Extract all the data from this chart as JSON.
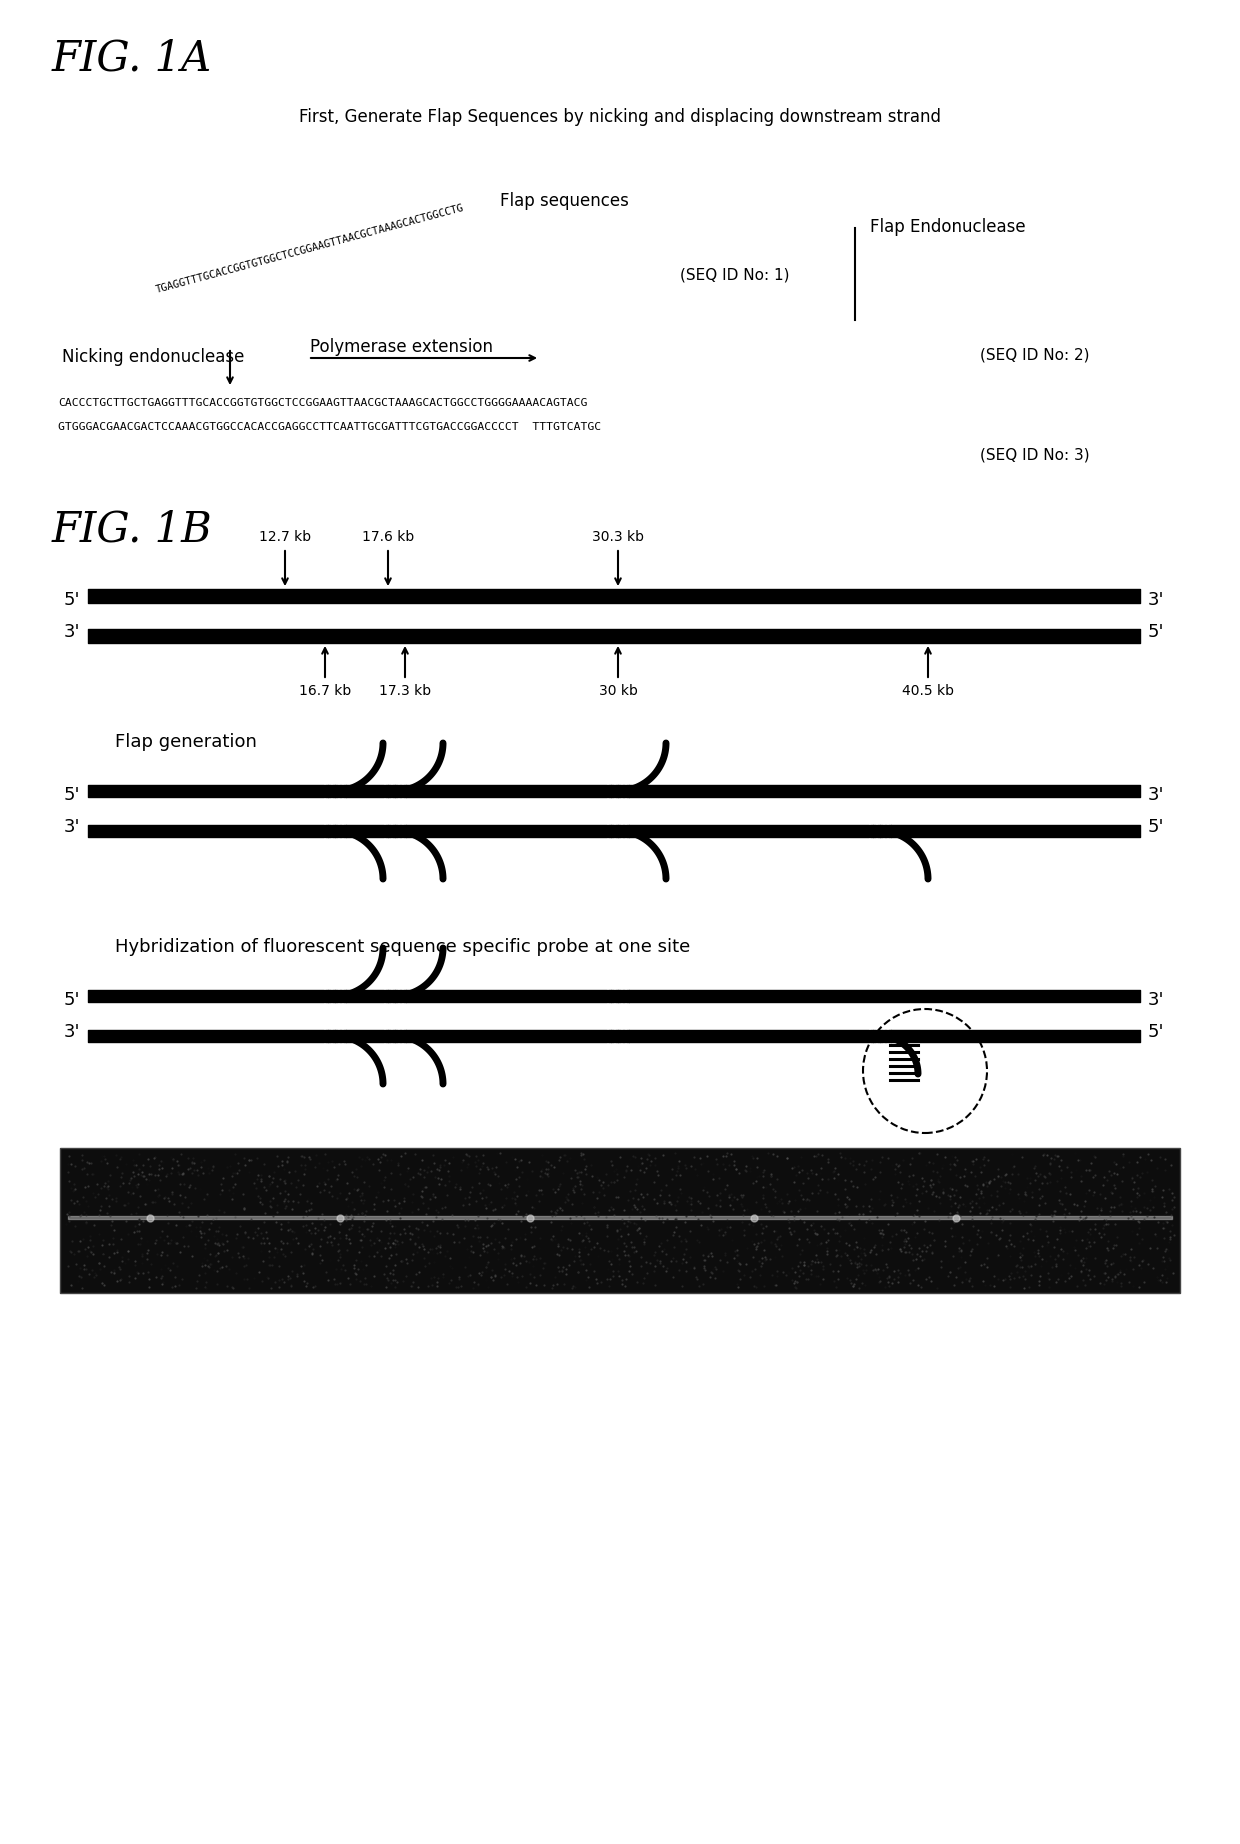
{
  "fig1a_title": "FIG. 1A",
  "fig1b_title": "FIG. 1B",
  "fig1a_subtitle": "First, Generate Flap Sequences by nicking and displacing downstream strand",
  "flap_sequence_text": "TGAGGTTTGCACCGGTGTGGCTCCGGAAGTTAACGCTAAAGCACTGGCCTG",
  "flap_label": "Flap sequences",
  "flap_endonuclease": "Flap Endonuclease",
  "nicking_endonuclease": "Nicking endonuclease",
  "polymerase_extension": "Polymerase extension",
  "seq1": "(SEQ ID No: 1)",
  "seq2": "(SEQ ID No: 2)",
  "seq3": "(SEQ ID No: 3)",
  "dna_line1": "CACCCTGCTTGCTGAGGTTTGCACCGGTGTGGCTCCGGAAGTTAACGCTAAAGCACTGGCCTGGGGAAAACAGTACG",
  "dna_line2": "GTGGGACGAACGACTCCAAACGTGGCCACACCGAGGCCTTCAATTGCGATTTCGTGACCGGACCCCT  TTTGTCATGC",
  "top_strand_labels": [
    "12.7 kb",
    "17.6 kb",
    "30.3 kb"
  ],
  "bottom_strand_labels": [
    "16.7 kb",
    "17.3 kb",
    "30 kb",
    "40.5 kb"
  ],
  "flap_generation_label": "Flap generation",
  "hybridization_label": "Hybridization of fluorescent sequence specific probe at one site",
  "bg_color": "#ffffff",
  "text_color": "#000000"
}
